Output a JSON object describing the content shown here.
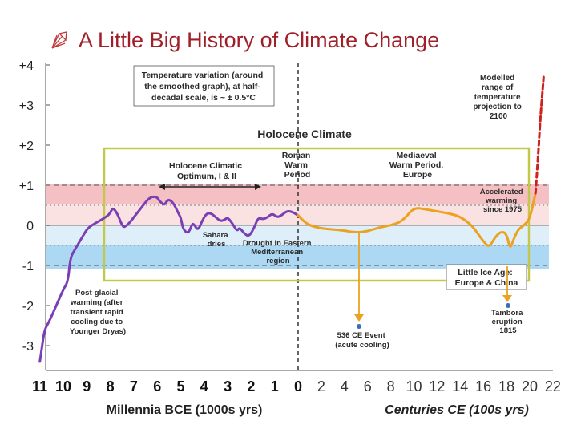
{
  "slide": {
    "title": "A Little Big History of Climate Change",
    "bullet_icon": "pen-nib-icon"
  },
  "chart_data": {
    "type": "line",
    "title": "Holocene Climate",
    "y_tick_labels": [
      "+4",
      "+3",
      "+2",
      "+1",
      "0",
      "-1",
      "-2",
      "-3"
    ],
    "y_tick_values": [
      4,
      3,
      2,
      1,
      0,
      -1,
      -2,
      -3
    ],
    "ylim": [
      -3.5,
      4.3
    ],
    "x_tick_labels_bce": [
      "11",
      "10",
      "9",
      "8",
      "7",
      "6",
      "5",
      "4",
      "3",
      "2",
      "1",
      "0"
    ],
    "x_tick_labels_ce": [
      "2",
      "4",
      "6",
      "8",
      "10",
      "12",
      "14",
      "16",
      "18",
      "20",
      "22"
    ],
    "xlabel_bce": "Millennia BCE (1000s yrs)",
    "xlabel_ce": "Centuries CE (100s yrs)",
    "grid": "horizontal dashed at +1 and -1, dotted at +0.5 and -0.5",
    "colors": {
      "bce_series": "#7b3fb5",
      "ce_series": "#eaa220",
      "projection": "#d0201a",
      "warm_band": "#f2b5b8",
      "cool_band": "#9dd1f2",
      "holocene_box": "#c2c94a",
      "title": "#a0202a"
    },
    "series": [
      {
        "name": "",
        "scale": "millennia BCE",
        "points": [
          [
            11,
            -3.4
          ],
          [
            10.9,
            -3.0
          ],
          [
            10.8,
            -2.6
          ],
          [
            10.6,
            -2.4
          ],
          [
            10.3,
            -2.0
          ],
          [
            10.0,
            -1.6
          ],
          [
            9.8,
            -1.4
          ],
          [
            9.7,
            -0.8
          ],
          [
            9.5,
            -0.6
          ],
          [
            9.2,
            -0.3
          ],
          [
            9.0,
            -0.1
          ],
          [
            8.8,
            0.0
          ],
          [
            8.5,
            0.1
          ],
          [
            8.2,
            0.2
          ],
          [
            8.0,
            0.3
          ],
          [
            7.9,
            0.45
          ],
          [
            7.7,
            0.3
          ],
          [
            7.5,
            0.0
          ],
          [
            7.4,
            -0.05
          ],
          [
            7.2,
            0.05
          ],
          [
            7.0,
            0.2
          ],
          [
            6.8,
            0.35
          ],
          [
            6.6,
            0.5
          ],
          [
            6.4,
            0.65
          ],
          [
            6.2,
            0.72
          ],
          [
            6.0,
            0.7
          ],
          [
            5.9,
            0.6
          ],
          [
            5.7,
            0.5
          ],
          [
            5.6,
            0.6
          ],
          [
            5.5,
            0.65
          ],
          [
            5.3,
            0.55
          ],
          [
            5.1,
            0.3
          ],
          [
            5.0,
            0.2
          ],
          [
            4.9,
            -0.1
          ],
          [
            4.7,
            -0.2
          ],
          [
            4.6,
            -0.1
          ],
          [
            4.5,
            0.05
          ],
          [
            4.4,
            0.0
          ],
          [
            4.3,
            -0.1
          ],
          [
            4.2,
            -0.05
          ],
          [
            4.1,
            0.1
          ],
          [
            3.9,
            0.3
          ],
          [
            3.7,
            0.3
          ],
          [
            3.5,
            0.2
          ],
          [
            3.3,
            0.1
          ],
          [
            3.1,
            0.15
          ],
          [
            3.0,
            0.2
          ],
          [
            2.8,
            0.05
          ],
          [
            2.6,
            -0.15
          ],
          [
            2.5,
            -0.05
          ],
          [
            2.3,
            -0.2
          ],
          [
            2.1,
            -0.28
          ],
          [
            1.9,
            -0.1
          ],
          [
            1.7,
            0.2
          ],
          [
            1.5,
            0.15
          ],
          [
            1.3,
            0.2
          ],
          [
            1.1,
            0.3
          ],
          [
            0.9,
            0.2
          ],
          [
            0.7,
            0.25
          ],
          [
            0.5,
            0.35
          ],
          [
            0.3,
            0.35
          ],
          [
            0.0,
            0.25
          ]
        ]
      },
      {
        "name": "",
        "scale": "centuries CE",
        "points": [
          [
            0.0,
            0.25
          ],
          [
            0.5,
            0.1
          ],
          [
            1.0,
            0.0
          ],
          [
            2.0,
            -0.08
          ],
          [
            3.0,
            -0.1
          ],
          [
            4.0,
            -0.13
          ],
          [
            5.0,
            -0.18
          ],
          [
            6.0,
            -0.15
          ],
          [
            7.0,
            -0.05
          ],
          [
            8.0,
            0.0
          ],
          [
            9.0,
            0.1
          ],
          [
            10.0,
            0.45
          ],
          [
            11.0,
            0.4
          ],
          [
            12.0,
            0.35
          ],
          [
            13.0,
            0.3
          ],
          [
            14.0,
            0.22
          ],
          [
            15.0,
            0.0
          ],
          [
            15.5,
            -0.2
          ],
          [
            16.0,
            -0.4
          ],
          [
            16.5,
            -0.55
          ],
          [
            17.0,
            -0.3
          ],
          [
            17.5,
            -0.15
          ],
          [
            18.0,
            -0.2
          ],
          [
            18.3,
            -0.6
          ],
          [
            18.6,
            -0.35
          ],
          [
            19.0,
            -0.1
          ],
          [
            19.5,
            0.0
          ],
          [
            20.0,
            0.15
          ],
          [
            20.5,
            0.8
          ]
        ]
      },
      {
        "name": "",
        "scale": "centuries CE",
        "dashed": true,
        "points": [
          [
            20.5,
            0.8
          ],
          [
            20.7,
            1.6
          ],
          [
            20.9,
            2.6
          ],
          [
            21.2,
            3.7
          ]
        ]
      }
    ],
    "annotations": {
      "temp_note": [
        "Temperature variation (around",
        "the smoothed graph), at half-",
        "decadal scale, is ~ ± 0.5°C"
      ],
      "holocene_title": "Holocene Climate",
      "optimum": [
        "Holocene Climatic",
        "Optimum, I & II"
      ],
      "roman": [
        "Roman",
        "Warm",
        "Period"
      ],
      "mediaeval": [
        "Mediaeval",
        "Warm Period,",
        "Europe"
      ],
      "modelled": [
        "Modelled",
        "range of",
        "temperature",
        "projection to",
        "2100"
      ],
      "accelerated": [
        "Accelerated",
        "warming",
        "since 1975"
      ],
      "sahara": [
        "Sahara",
        "dries"
      ],
      "drought": [
        "Drought in Eastern",
        "Mediterranean",
        "region"
      ],
      "little_ice_age": [
        "Little Ice Age:",
        "Europe & China"
      ],
      "postglacial": [
        "Post-glacial",
        "warming (after",
        "transient rapid",
        "cooling due to",
        "Younger Dryas)"
      ],
      "event536": [
        "536 CE Event",
        "(acute cooling)"
      ],
      "tambora": [
        "Tambora",
        "eruption",
        "1815"
      ]
    }
  }
}
